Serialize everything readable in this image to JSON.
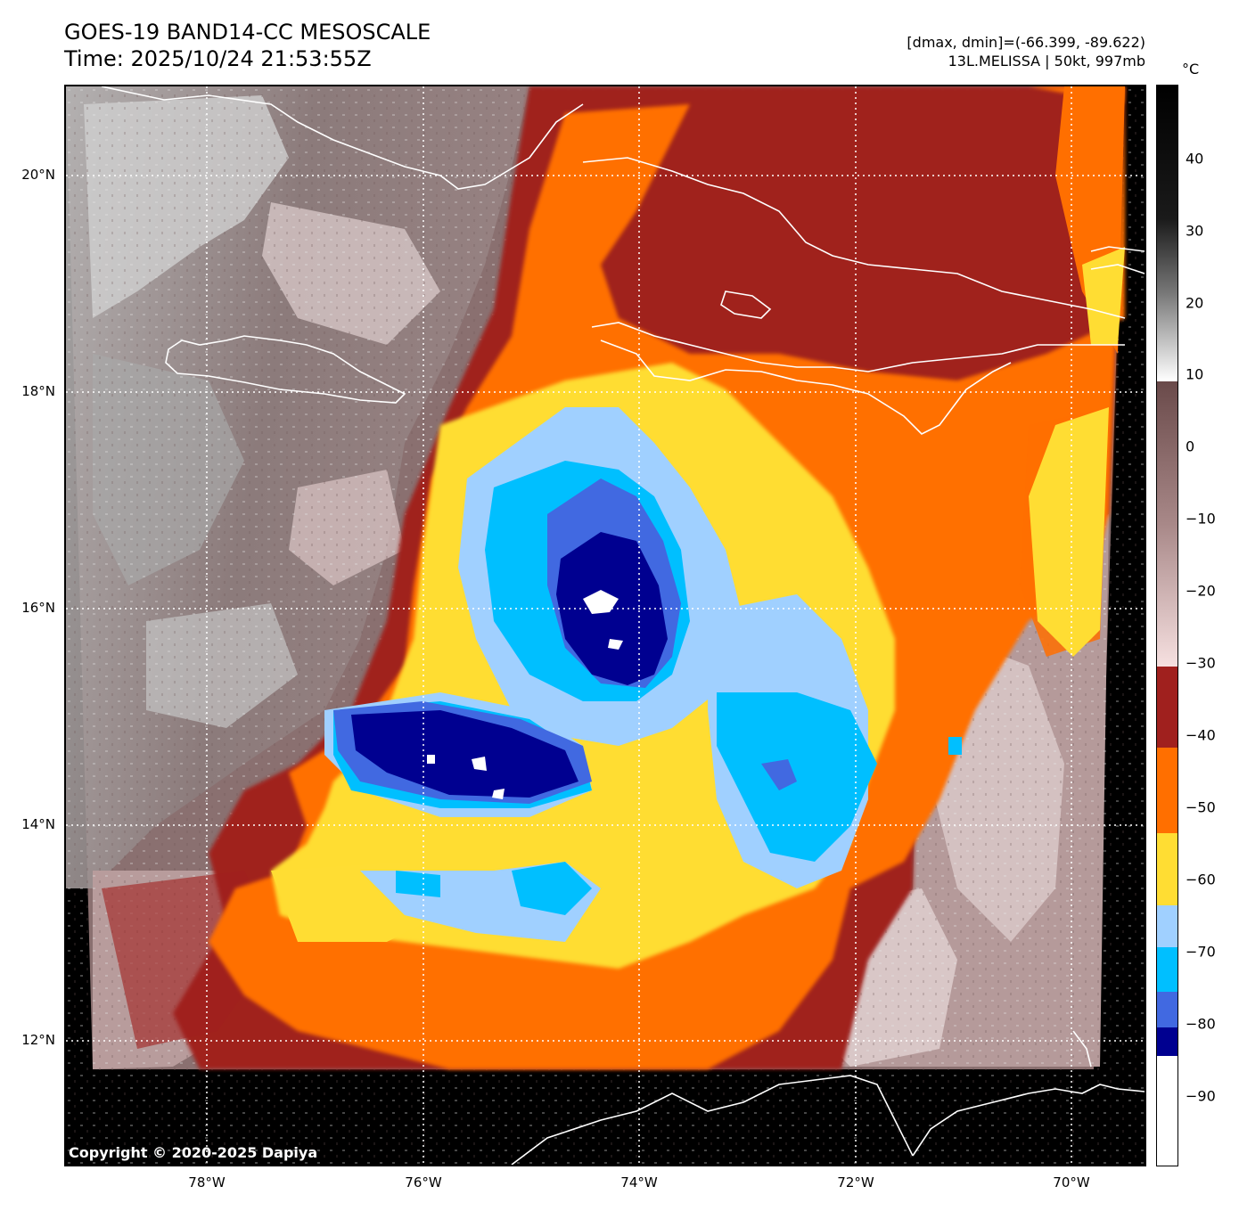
{
  "header": {
    "title_line1": "GOES-19 BAND14-CC MESOSCALE",
    "title_line2": "Time: 2025/10/24 21:53:55Z",
    "info_line1": "[dmax, dmin]=(-66.399, -89.622)",
    "info_line2": "13L.MELISSA | 50kt, 997mb"
  },
  "map": {
    "lat_labels": [
      "20°N",
      "18°N",
      "16°N",
      "14°N",
      "12°N"
    ],
    "lon_labels": [
      "78°W",
      "76°W",
      "74°W",
      "72°W",
      "70°W"
    ],
    "copyright": "Copyright © 2020-2025 Dapiya",
    "storm": "13L.MELISSA",
    "gridlines": "dotted white"
  },
  "colorbar": {
    "unit": "°C",
    "tick_labels": [
      "40",
      "30",
      "20",
      "10",
      "0",
      "−10",
      "−20",
      "−30",
      "−40",
      "−50",
      "−60",
      "−70",
      "−80",
      "−90"
    ],
    "range": [
      -100,
      49
    ],
    "colors": {
      "below_-85": "#ffffff",
      "-85_to_-81": "#000090",
      "-81_to_-75": "#4169e1",
      "-75_to_-70": "#00bfff",
      "-70_to_-64": "#a0d0ff",
      "-64_to_-53": "#ffdd33",
      "-53_to_-41": "#ff6f00",
      "-41_to_-30": "#a0201e",
      "-30_to_9": "pink-to-brown gradient",
      "9_to_49": "white-to-black gradient"
    }
  }
}
